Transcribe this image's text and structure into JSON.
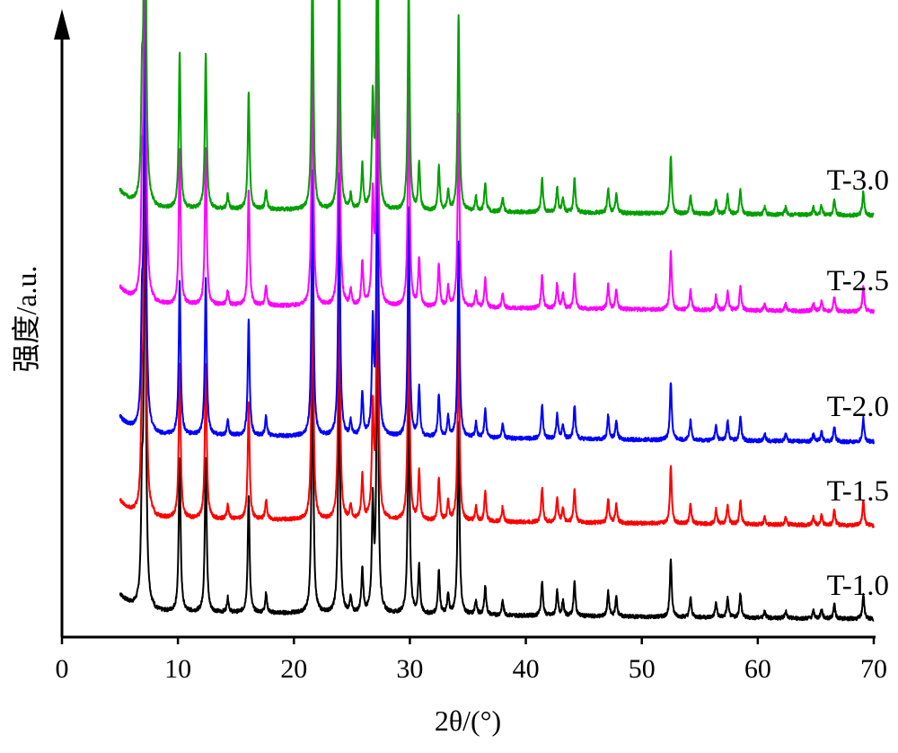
{
  "chart_data": {
    "type": "line",
    "xlabel": "2θ/(°)",
    "ylabel": "强度/a.u.",
    "xlim": [
      0,
      70
    ],
    "x_ticks": [
      "0",
      "10",
      "20",
      "30",
      "40",
      "50",
      "60",
      "70"
    ],
    "y_ticks": [],
    "grid": false,
    "legend": "series labels printed at right end of each trace",
    "x_start": 5,
    "x_end": 70,
    "series": [
      {
        "name": "T-1.0",
        "color": "#000000",
        "baseline": 0,
        "peaks": [
          [
            6.9,
            2.0
          ],
          [
            7.15,
            10.0
          ],
          [
            10.15,
            3.2
          ],
          [
            12.4,
            3.2
          ],
          [
            14.3,
            0.3
          ],
          [
            16.1,
            2.4
          ],
          [
            17.6,
            0.4
          ],
          [
            21.6,
            5.5
          ],
          [
            23.9,
            5.4
          ],
          [
            24.9,
            0.3
          ],
          [
            25.9,
            0.9
          ],
          [
            26.8,
            2.2
          ],
          [
            27.2,
            6.6
          ],
          [
            29.9,
            4.7
          ],
          [
            30.8,
            1.0
          ],
          [
            32.5,
            0.9
          ],
          [
            33.3,
            0.4
          ],
          [
            34.2,
            4.0
          ],
          [
            35.7,
            0.3
          ],
          [
            36.5,
            0.6
          ],
          [
            38.0,
            0.3
          ],
          [
            41.4,
            0.7
          ],
          [
            42.7,
            0.5
          ],
          [
            43.2,
            0.3
          ],
          [
            44.2,
            0.7
          ],
          [
            47.1,
            0.5
          ],
          [
            47.8,
            0.4
          ],
          [
            52.5,
            1.2
          ],
          [
            54.2,
            0.4
          ],
          [
            56.4,
            0.3
          ],
          [
            57.4,
            0.4
          ],
          [
            58.5,
            0.5
          ],
          [
            60.6,
            0.15
          ],
          [
            62.4,
            0.15
          ],
          [
            64.8,
            0.15
          ],
          [
            65.5,
            0.2
          ],
          [
            66.6,
            0.3
          ],
          [
            69.1,
            0.5
          ]
        ]
      },
      {
        "name": "T-1.5",
        "color": "#ff0000",
        "baseline": 0,
        "peaks": [
          [
            6.9,
            2.0
          ],
          [
            7.15,
            10.0
          ],
          [
            10.15,
            3.2
          ],
          [
            12.4,
            3.2
          ],
          [
            14.3,
            0.3
          ],
          [
            16.1,
            2.4
          ],
          [
            17.6,
            0.4
          ],
          [
            21.6,
            5.5
          ],
          [
            23.9,
            5.4
          ],
          [
            24.9,
            0.3
          ],
          [
            25.9,
            0.9
          ],
          [
            26.8,
            2.2
          ],
          [
            27.2,
            6.6
          ],
          [
            29.9,
            4.7
          ],
          [
            30.8,
            1.0
          ],
          [
            32.5,
            0.9
          ],
          [
            33.3,
            0.4
          ],
          [
            34.2,
            4.0
          ],
          [
            35.7,
            0.3
          ],
          [
            36.5,
            0.6
          ],
          [
            38.0,
            0.3
          ],
          [
            41.4,
            0.7
          ],
          [
            42.7,
            0.5
          ],
          [
            43.2,
            0.3
          ],
          [
            44.2,
            0.7
          ],
          [
            47.1,
            0.5
          ],
          [
            47.8,
            0.4
          ],
          [
            52.5,
            1.2
          ],
          [
            54.2,
            0.4
          ],
          [
            56.4,
            0.3
          ],
          [
            57.4,
            0.4
          ],
          [
            58.5,
            0.5
          ],
          [
            60.6,
            0.15
          ],
          [
            62.4,
            0.15
          ],
          [
            64.8,
            0.15
          ],
          [
            65.5,
            0.2
          ],
          [
            66.6,
            0.3
          ],
          [
            69.1,
            0.5
          ]
        ]
      },
      {
        "name": "T-2.0",
        "color": "#0000ff",
        "baseline": 0,
        "peaks": [
          [
            6.9,
            2.0
          ],
          [
            7.15,
            10.0
          ],
          [
            10.15,
            3.2
          ],
          [
            12.4,
            3.2
          ],
          [
            14.3,
            0.3
          ],
          [
            16.1,
            2.4
          ],
          [
            17.6,
            0.4
          ],
          [
            21.6,
            5.5
          ],
          [
            23.9,
            5.4
          ],
          [
            24.9,
            0.3
          ],
          [
            25.9,
            0.9
          ],
          [
            26.8,
            2.2
          ],
          [
            27.2,
            6.6
          ],
          [
            29.9,
            4.7
          ],
          [
            30.8,
            1.0
          ],
          [
            32.5,
            0.9
          ],
          [
            33.3,
            0.4
          ],
          [
            34.2,
            4.0
          ],
          [
            35.7,
            0.3
          ],
          [
            36.5,
            0.6
          ],
          [
            38.0,
            0.3
          ],
          [
            41.4,
            0.7
          ],
          [
            42.7,
            0.5
          ],
          [
            43.2,
            0.3
          ],
          [
            44.2,
            0.7
          ],
          [
            47.1,
            0.5
          ],
          [
            47.8,
            0.4
          ],
          [
            52.5,
            1.2
          ],
          [
            54.2,
            0.4
          ],
          [
            56.4,
            0.3
          ],
          [
            57.4,
            0.4
          ],
          [
            58.5,
            0.5
          ],
          [
            60.6,
            0.15
          ],
          [
            62.4,
            0.15
          ],
          [
            64.8,
            0.15
          ],
          [
            65.5,
            0.2
          ],
          [
            66.6,
            0.3
          ],
          [
            69.1,
            0.5
          ]
        ]
      },
      {
        "name": "T-2.5",
        "color": "#ff00ff",
        "baseline": 0,
        "peaks": [
          [
            6.9,
            2.0
          ],
          [
            7.15,
            10.0
          ],
          [
            10.15,
            3.2
          ],
          [
            12.4,
            3.2
          ],
          [
            14.3,
            0.3
          ],
          [
            16.1,
            2.4
          ],
          [
            17.6,
            0.4
          ],
          [
            21.6,
            5.5
          ],
          [
            23.9,
            5.4
          ],
          [
            24.9,
            0.3
          ],
          [
            25.9,
            0.9
          ],
          [
            26.8,
            2.2
          ],
          [
            27.2,
            6.6
          ],
          [
            29.9,
            4.7
          ],
          [
            30.8,
            1.0
          ],
          [
            32.5,
            0.9
          ],
          [
            33.3,
            0.4
          ],
          [
            34.2,
            4.0
          ],
          [
            35.7,
            0.3
          ],
          [
            36.5,
            0.6
          ],
          [
            38.0,
            0.3
          ],
          [
            41.4,
            0.7
          ],
          [
            42.7,
            0.5
          ],
          [
            43.2,
            0.3
          ],
          [
            44.2,
            0.7
          ],
          [
            47.1,
            0.5
          ],
          [
            47.8,
            0.4
          ],
          [
            52.5,
            1.2
          ],
          [
            54.2,
            0.4
          ],
          [
            56.4,
            0.3
          ],
          [
            57.4,
            0.4
          ],
          [
            58.5,
            0.5
          ],
          [
            60.6,
            0.15
          ],
          [
            62.4,
            0.15
          ],
          [
            64.8,
            0.15
          ],
          [
            65.5,
            0.2
          ],
          [
            66.6,
            0.3
          ],
          [
            69.1,
            0.5
          ]
        ]
      },
      {
        "name": "T-3.0",
        "color": "#00a000",
        "baseline": 0,
        "peaks": [
          [
            6.9,
            2.0
          ],
          [
            7.15,
            10.0
          ],
          [
            10.15,
            3.2
          ],
          [
            12.4,
            3.2
          ],
          [
            14.3,
            0.3
          ],
          [
            16.1,
            2.4
          ],
          [
            17.6,
            0.4
          ],
          [
            21.6,
            5.5
          ],
          [
            23.9,
            5.4
          ],
          [
            24.9,
            0.3
          ],
          [
            25.9,
            0.9
          ],
          [
            26.8,
            2.2
          ],
          [
            27.2,
            6.6
          ],
          [
            29.9,
            4.7
          ],
          [
            30.8,
            1.0
          ],
          [
            32.5,
            0.9
          ],
          [
            33.3,
            0.4
          ],
          [
            34.2,
            4.0
          ],
          [
            35.7,
            0.3
          ],
          [
            36.5,
            0.6
          ],
          [
            38.0,
            0.3
          ],
          [
            41.4,
            0.7
          ],
          [
            42.7,
            0.5
          ],
          [
            43.2,
            0.3
          ],
          [
            44.2,
            0.7
          ],
          [
            47.1,
            0.5
          ],
          [
            47.8,
            0.4
          ],
          [
            52.5,
            1.2
          ],
          [
            54.2,
            0.4
          ],
          [
            56.4,
            0.3
          ],
          [
            57.4,
            0.4
          ],
          [
            58.5,
            0.5
          ],
          [
            60.6,
            0.15
          ],
          [
            62.4,
            0.15
          ],
          [
            64.8,
            0.15
          ],
          [
            65.5,
            0.2
          ],
          [
            66.6,
            0.3
          ],
          [
            69.1,
            0.5
          ]
        ]
      }
    ]
  }
}
